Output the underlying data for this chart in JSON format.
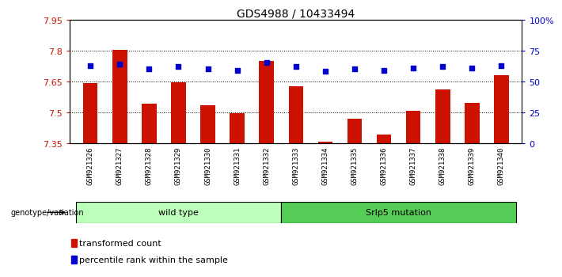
{
  "title": "GDS4988 / 10433494",
  "samples": [
    "GSM921326",
    "GSM921327",
    "GSM921328",
    "GSM921329",
    "GSM921330",
    "GSM921331",
    "GSM921332",
    "GSM921333",
    "GSM921334",
    "GSM921335",
    "GSM921336",
    "GSM921337",
    "GSM921338",
    "GSM921339",
    "GSM921340"
  ],
  "transformed_counts": [
    7.64,
    7.805,
    7.54,
    7.645,
    7.535,
    7.495,
    7.75,
    7.625,
    7.355,
    7.47,
    7.39,
    7.505,
    7.61,
    7.545,
    7.68
  ],
  "percentile_ranks": [
    63,
    64,
    60,
    62,
    60,
    59,
    65,
    62,
    58,
    60,
    59,
    61,
    62,
    61,
    63
  ],
  "ylim_left": [
    7.35,
    7.95
  ],
  "ylim_right": [
    0,
    100
  ],
  "yticks_left": [
    7.35,
    7.5,
    7.65,
    7.8,
    7.95
  ],
  "yticks_right": [
    0,
    25,
    50,
    75,
    100
  ],
  "ytick_labels_left": [
    "7.35",
    "7.5",
    "7.65",
    "7.8",
    "7.95"
  ],
  "ytick_labels_right": [
    "0",
    "25",
    "50",
    "75",
    "100%"
  ],
  "bar_color": "#cc1100",
  "dot_color": "#0000cc",
  "bar_bottom": 7.35,
  "wild_type_count": 7,
  "mutation_count": 8,
  "wild_type_label": "wild type",
  "mutation_label": "Srlp5 mutation",
  "wild_type_color": "#bbffbb",
  "mutation_color": "#55cc55",
  "genotype_label": "genotype/variation",
  "legend_bar_label": "transformed count",
  "legend_dot_label": "percentile rank within the sample",
  "grid_color": "black",
  "xticklabel_bg": "#d8d8d8",
  "plot_bg_color": "white",
  "bar_width": 0.5,
  "title_fontsize": 10
}
